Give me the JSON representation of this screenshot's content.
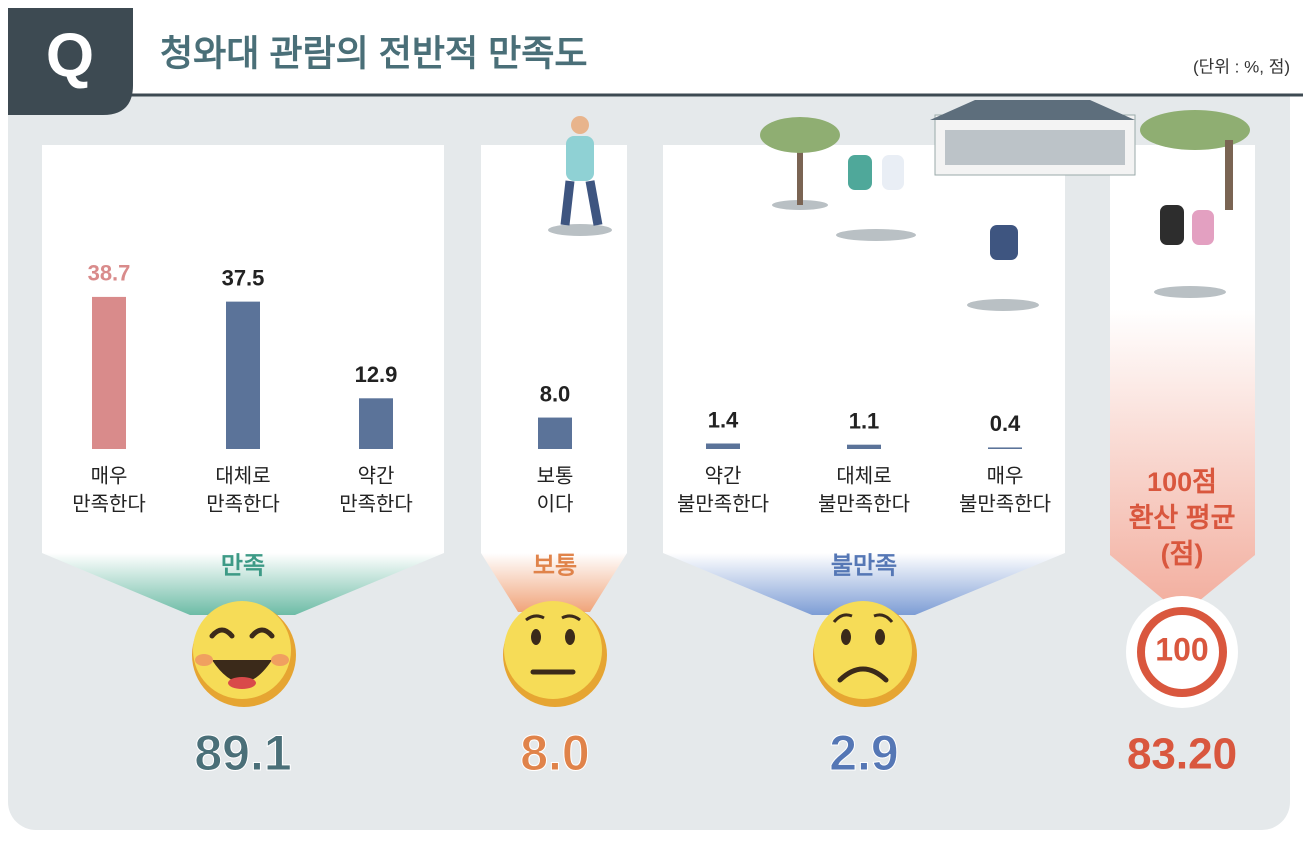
{
  "header": {
    "badge": "Q",
    "title": "청와대 관람의 전반적 만족도",
    "unit": "(단위 : %, 점)"
  },
  "chart_data": {
    "type": "bar",
    "categories": [
      [
        "매우",
        "만족한다"
      ],
      [
        "대체로",
        "만족한다"
      ],
      [
        "약간",
        "만족한다"
      ],
      [
        "보통",
        "이다"
      ],
      [
        "약간",
        "불만족한다"
      ],
      [
        "대체로",
        "불만족한다"
      ],
      [
        "매우",
        "불만족한다"
      ]
    ],
    "values": [
      38.7,
      37.5,
      12.9,
      8.0,
      1.4,
      1.1,
      0.4
    ],
    "value_labels": [
      "38.7",
      "37.5",
      "12.9",
      "8.0",
      "1.4",
      "1.1",
      "0.4"
    ],
    "colors": [
      "#d98b8b",
      "#5b7399",
      "#5b7399",
      "#5b7399",
      "#5b7399",
      "#5b7399",
      "#5b7399"
    ],
    "groups": [
      {
        "name": "만족",
        "total": 89.1,
        "color": "#3d9a86",
        "total_color": "#4a6f78"
      },
      {
        "name": "보통",
        "total": {
          "value": 8.0,
          "label": "8.0"
        },
        "color": "#e0834a",
        "total_color": "#e0834a"
      },
      {
        "name": "불만족",
        "total": 2.9,
        "color": "#5577b5",
        "total_color": "#5577b5"
      }
    ]
  },
  "average": {
    "title": [
      "100점",
      "환산 평균",
      "(점)"
    ],
    "scale": 100,
    "score": {
      "value": 83.2,
      "label": "83.20"
    },
    "color": "#d9573e"
  }
}
